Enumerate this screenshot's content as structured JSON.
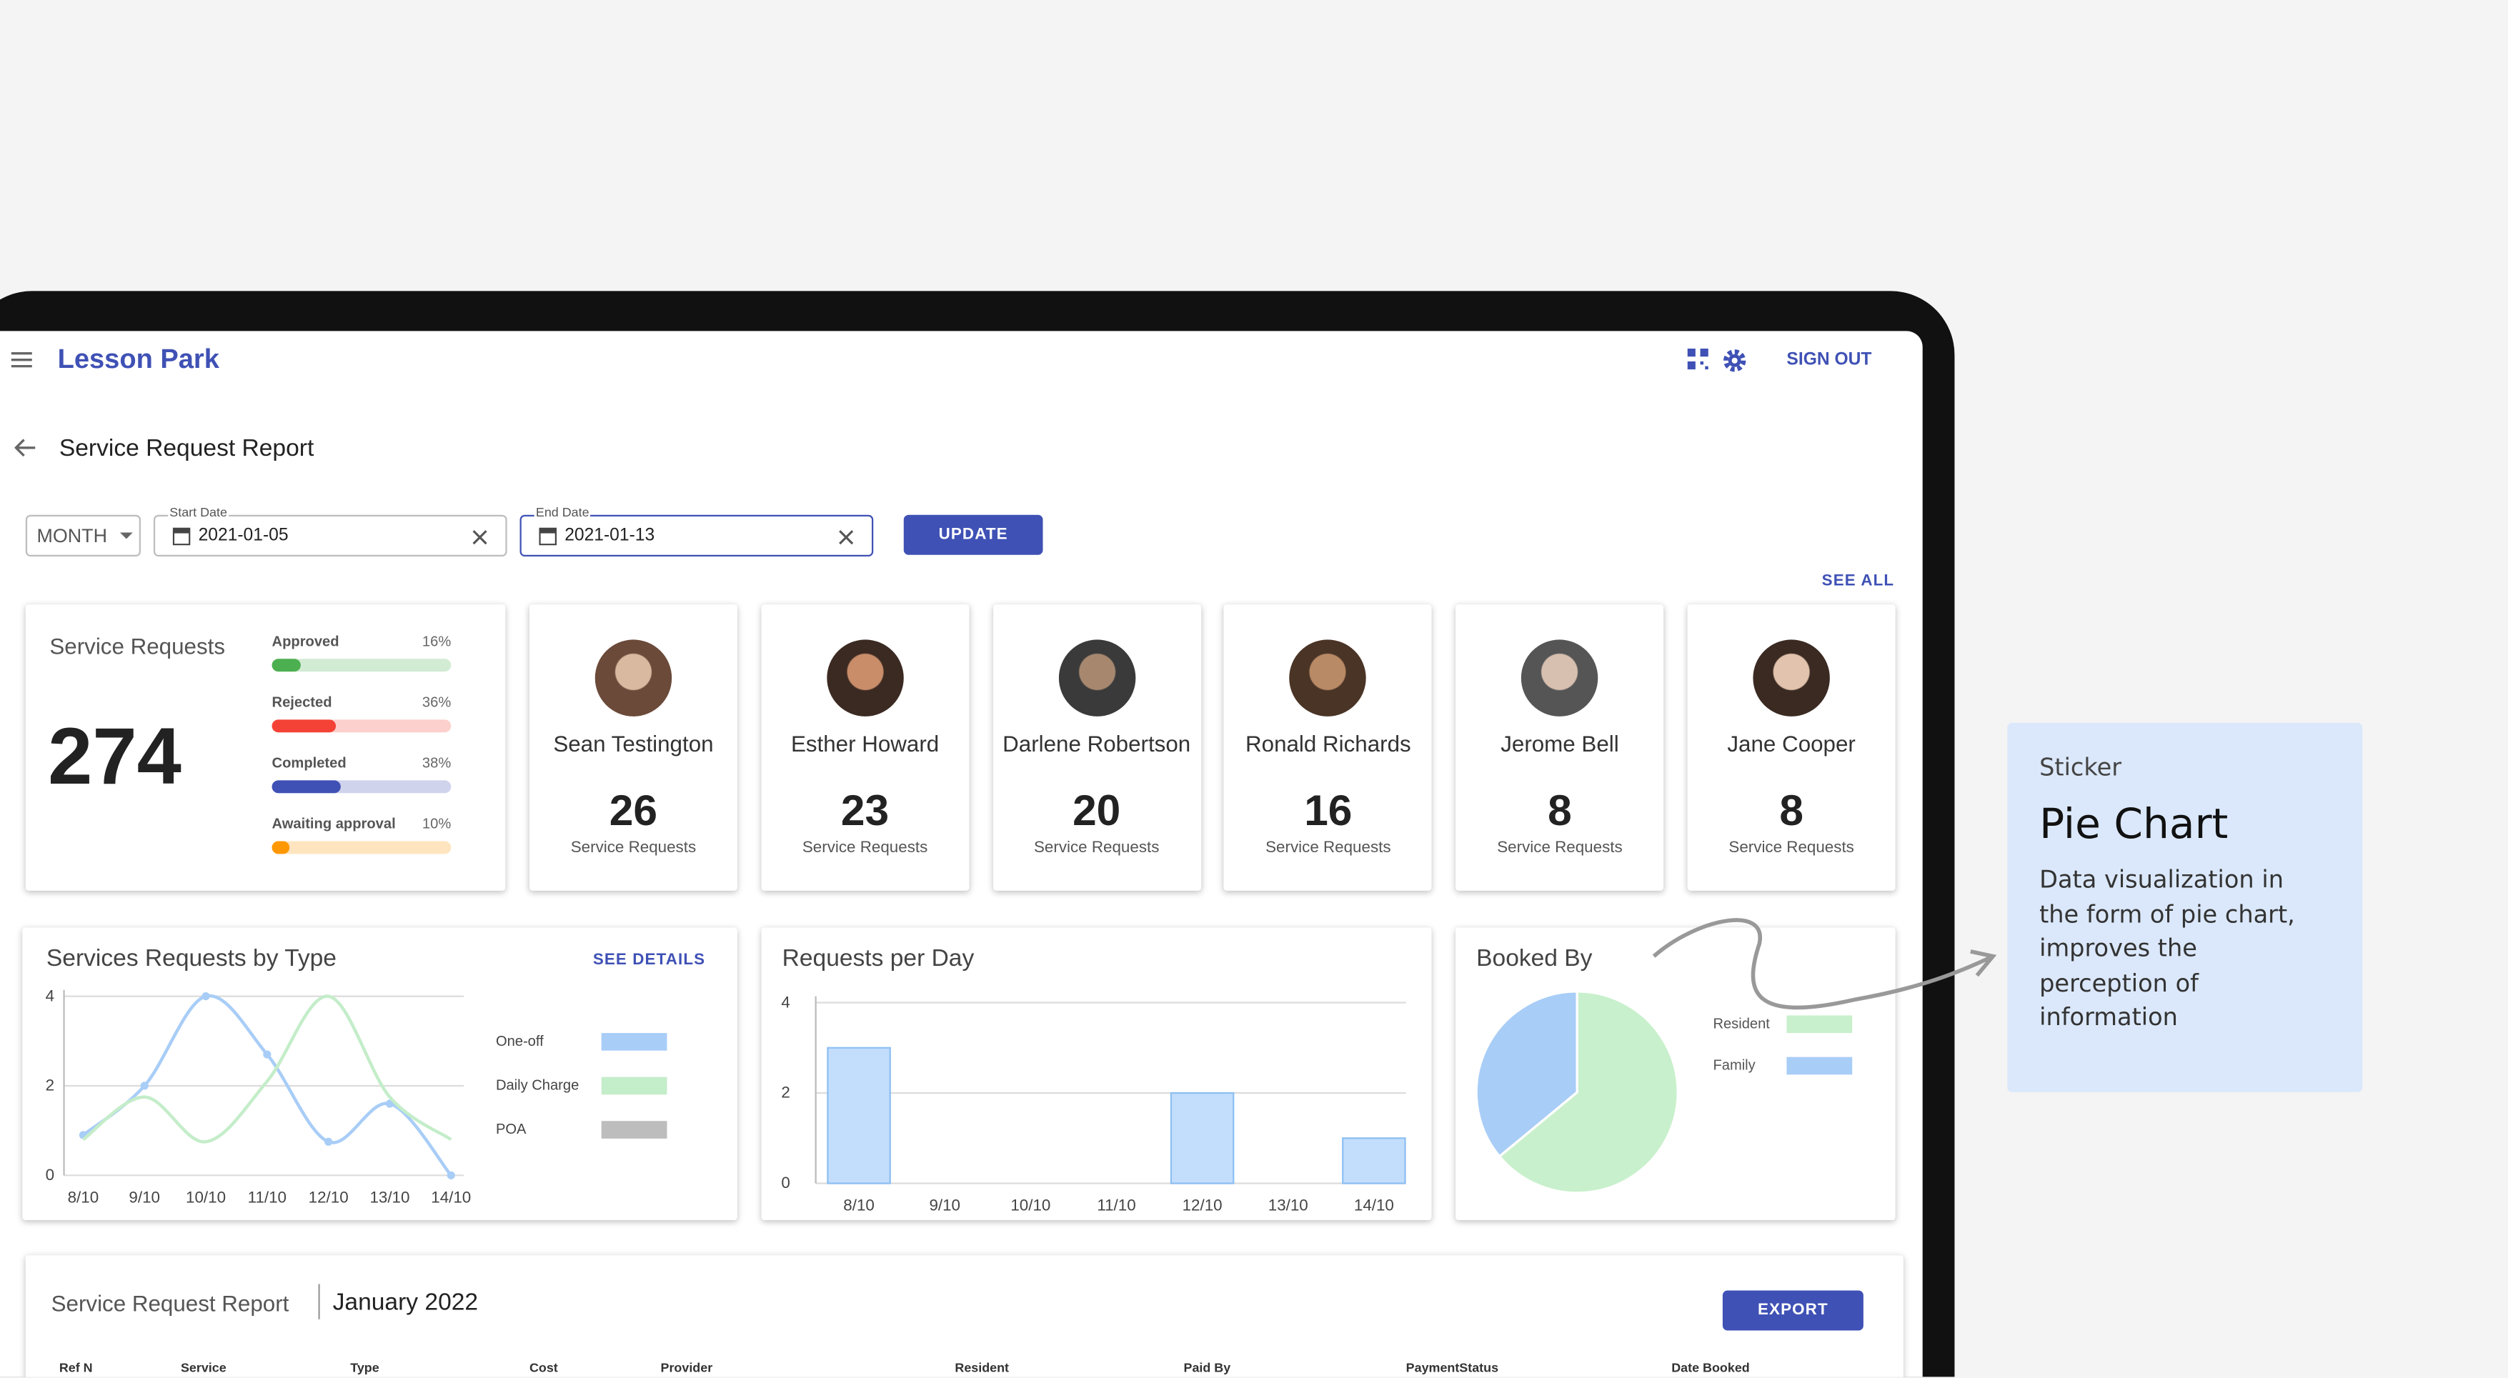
{
  "app": {
    "title": "Lesson Park",
    "sign_out": "SIGN OUT"
  },
  "page_title": "Service Request Report",
  "filters": {
    "period": "MONTH",
    "start_label": "Start Date",
    "start_value": "2021-01-05",
    "end_label": "End Date",
    "end_value": "2021-01-13",
    "update": "UPDATE"
  },
  "see_all": "SEE ALL",
  "summary": {
    "title": "Service Requests",
    "total": 274,
    "statuses": {
      "names": [
        "Approved",
        "Rejected",
        "Completed",
        "Awaiting approval"
      ],
      "values": [
        16,
        36,
        38,
        10
      ],
      "value_labels": [
        "16%",
        "36%",
        "38%",
        "10%"
      ],
      "colors": [
        "#4caf50",
        "#f44336",
        "#3f51b5",
        "#ff9800"
      ]
    }
  },
  "providers": {
    "unit_label": "Service Requests",
    "names": [
      "Sean Testington",
      "Esther Howard",
      "Darlene Robertson",
      "Ronald Richards",
      "Jerome Bell",
      "Jane Cooper"
    ],
    "values": [
      26,
      23,
      20,
      16,
      8,
      8
    ]
  },
  "chart_data": [
    {
      "type": "line",
      "title": "Services Requests by Type",
      "action": "SEE DETAILS",
      "categories": [
        "8/10",
        "9/10",
        "10/10",
        "11/10",
        "12/10",
        "13/10",
        "14/10"
      ],
      "series": [
        {
          "name": "One-off",
          "color": "#a8cdf7",
          "markers": true,
          "values": [
            0.9,
            2,
            4,
            2.7,
            0.75,
            1.6,
            0
          ]
        },
        {
          "name": "Daily Charge",
          "color": "#c4edc9",
          "markers": false,
          "values": [
            0.8,
            1.75,
            0.75,
            2.1,
            4,
            1.75,
            0.8
          ]
        },
        {
          "name": "POA",
          "color": "#bdbdbd",
          "markers": false,
          "values": [
            null,
            null,
            null,
            null,
            null,
            null,
            null
          ]
        }
      ],
      "ylim": [
        0,
        4
      ],
      "yticks": [
        0,
        2,
        4
      ],
      "grid": true
    },
    {
      "type": "bar",
      "title": "Requests per Day",
      "categories": [
        "8/10",
        "9/10",
        "10/10",
        "11/10",
        "12/10",
        "13/10",
        "14/10"
      ],
      "values": [
        3,
        0,
        0,
        0,
        2,
        0,
        1
      ],
      "color": "#c3defc",
      "ylim": [
        0,
        4
      ],
      "yticks": [
        0,
        2,
        4
      ],
      "grid": true
    },
    {
      "type": "pie",
      "title": "Booked By",
      "categories": [
        "Resident",
        "Family"
      ],
      "values": [
        64,
        36
      ],
      "colors": [
        "#c8f0cc",
        "#a8cdf7"
      ]
    }
  ],
  "sticker": {
    "label": "Sticker",
    "title": "Pie Chart",
    "text": "Data visualization in the form of pie chart, improves the perception of information"
  },
  "table": {
    "title": "Service Request Report",
    "period": "January 2022",
    "export": "EXPORT",
    "columns": [
      "Ref N",
      "Service",
      "Type",
      "Cost",
      "Provider",
      "Resident",
      "Paid By",
      "PaymentStatus",
      "Date Booked"
    ]
  }
}
